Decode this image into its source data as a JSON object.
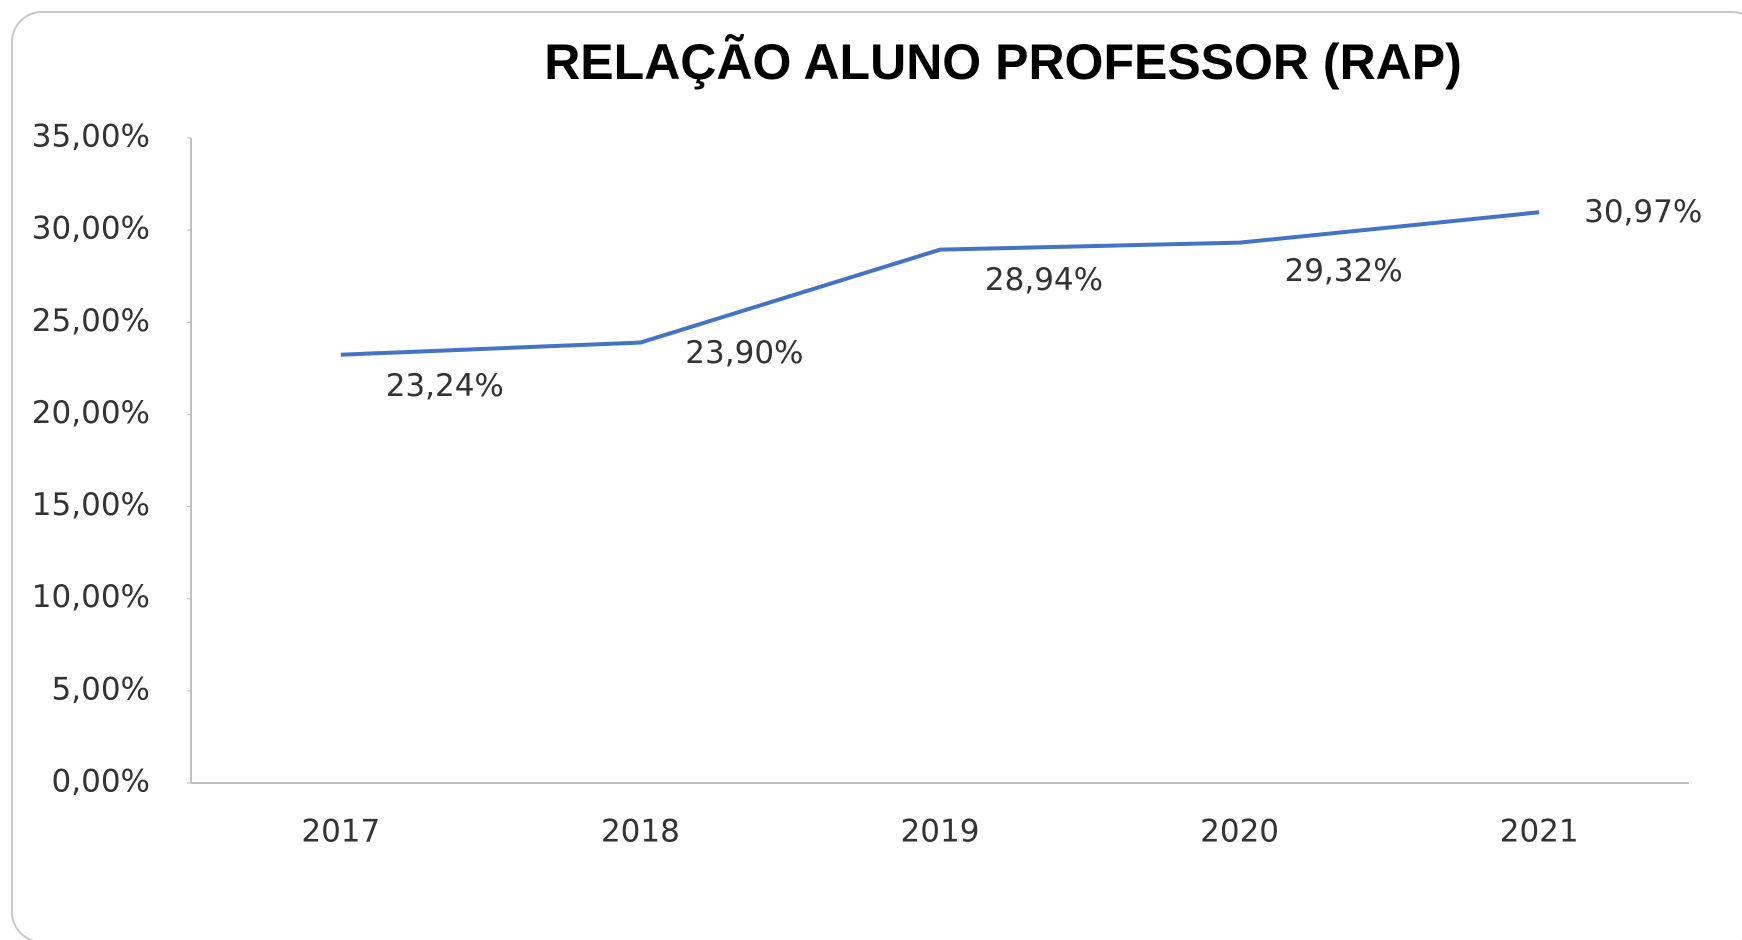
{
  "chart_data": {
    "type": "line",
    "title": "RELAÇÃO ALUNO PROFESSOR (RAP)",
    "categories": [
      "2017",
      "2018",
      "2019",
      "2020",
      "2021"
    ],
    "series": [
      {
        "name": "RAP",
        "color": "#4472c4",
        "values": [
          23.24,
          23.9,
          28.94,
          29.32,
          30.97
        ],
        "value_labels": [
          "23,24%",
          "23,90%",
          "28,94%",
          "29,32%",
          "30,97%"
        ]
      }
    ],
    "ylim": [
      0,
      35
    ],
    "yticks": [
      {
        "value": 0,
        "label": "0,00%"
      },
      {
        "value": 5,
        "label": "5,00%"
      },
      {
        "value": 10,
        "label": "10,00%"
      },
      {
        "value": 15,
        "label": "15,00%"
      },
      {
        "value": 20,
        "label": "20,00%"
      },
      {
        "value": 25,
        "label": "25,00%"
      },
      {
        "value": 30,
        "label": "30,00%"
      },
      {
        "value": 35,
        "label": "35,00%"
      }
    ]
  }
}
